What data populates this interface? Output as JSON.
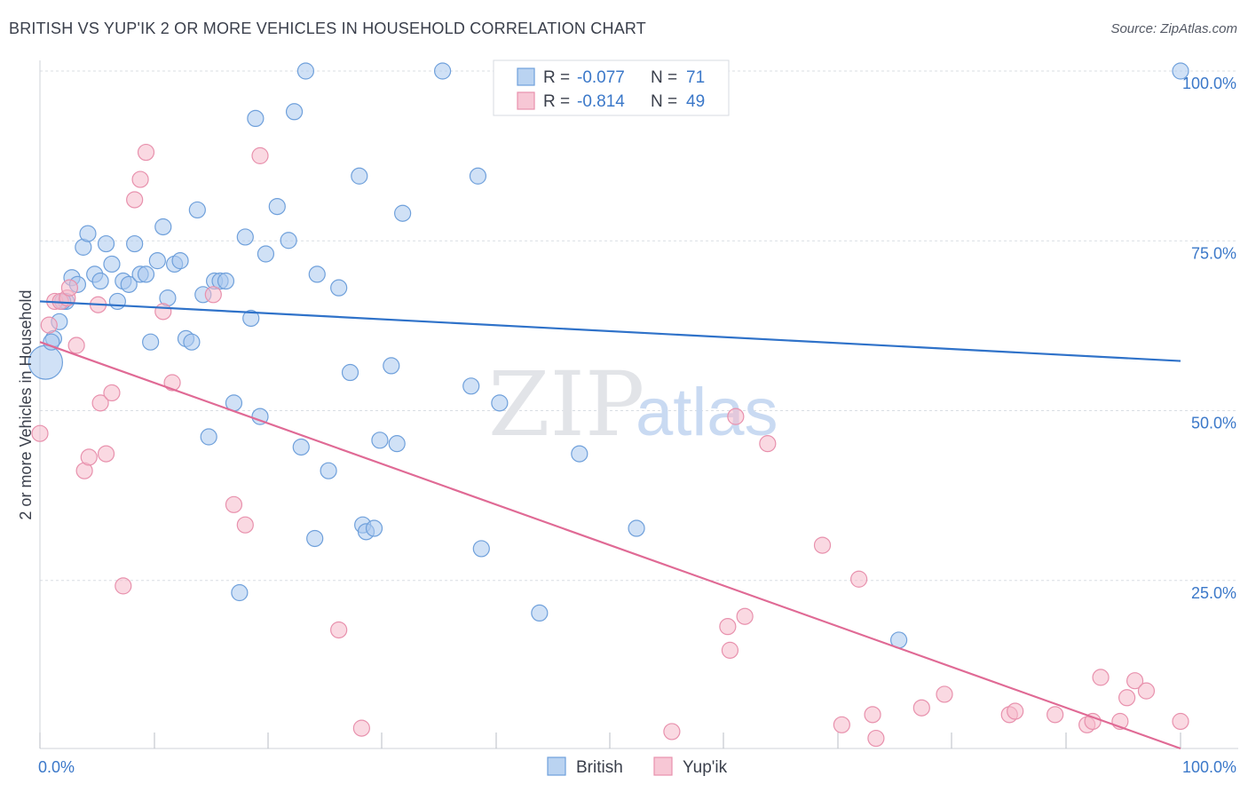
{
  "title": "BRITISH VS YUP'IK 2 OR MORE VEHICLES IN HOUSEHOLD CORRELATION CHART",
  "source": "Source: ZipAtlas.com",
  "watermark": {
    "zip": "ZIP",
    "atlas": "atlas"
  },
  "legend_box": {
    "rows": [
      {
        "r_label": "R =",
        "r_value": "-0.077",
        "n_label": "N =",
        "n_value": "71"
      },
      {
        "r_label": "R =",
        "r_value": "-0.814",
        "n_label": "N =",
        "n_value": "49"
      }
    ]
  },
  "bottom_legend": [
    "British",
    "Yup'ik"
  ],
  "colors": {
    "british_fill": "#a9c8ee",
    "british_stroke": "#6fa0db",
    "british_line": "#2f72c9",
    "yupik_fill": "#f5b9cb",
    "yupik_stroke": "#e891ad",
    "yupik_line": "#e06a95",
    "tick_text": "#3b78c9",
    "grid": "#d9dde3",
    "axis_text": "#3a3f4b"
  },
  "chart_data": {
    "type": "scatter",
    "title": "BRITISH VS YUP'IK 2 OR MORE VEHICLES IN HOUSEHOLD CORRELATION CHART",
    "xlabel": "",
    "ylabel": "2 or more Vehicles in Household",
    "xlim": [
      0,
      100
    ],
    "ylim": [
      0,
      100
    ],
    "x_tick_labels": [
      "0.0%",
      "100.0%"
    ],
    "y_tick_labels": [
      "25.0%",
      "50.0%",
      "75.0%",
      "100.0%"
    ],
    "y_ticks": [
      25,
      50,
      75,
      100
    ],
    "grid": true,
    "legend_position": "top-center",
    "series": [
      {
        "name": "British",
        "r": -0.077,
        "n": 71,
        "trend": [
          [
            0,
            66.0
          ],
          [
            100,
            57.2
          ]
        ],
        "points": [
          {
            "x": 0.5,
            "y": 57.0,
            "big": true
          },
          {
            "x": 1.2,
            "y": 60.5
          },
          {
            "x": 1.7,
            "y": 63.0
          },
          {
            "x": 2.3,
            "y": 66.0
          },
          {
            "x": 2.8,
            "y": 69.5
          },
          {
            "x": 3.3,
            "y": 68.5
          },
          {
            "x": 3.8,
            "y": 74.0
          },
          {
            "x": 4.2,
            "y": 76.0
          },
          {
            "x": 4.8,
            "y": 70.0
          },
          {
            "x": 5.3,
            "y": 69.0
          },
          {
            "x": 5.8,
            "y": 74.5
          },
          {
            "x": 6.3,
            "y": 71.5
          },
          {
            "x": 6.8,
            "y": 66.0
          },
          {
            "x": 7.3,
            "y": 69.0
          },
          {
            "x": 7.8,
            "y": 68.5
          },
          {
            "x": 8.3,
            "y": 74.5
          },
          {
            "x": 8.8,
            "y": 70.0
          },
          {
            "x": 9.3,
            "y": 70.0
          },
          {
            "x": 9.7,
            "y": 60.0
          },
          {
            "x": 10.3,
            "y": 72.0
          },
          {
            "x": 10.8,
            "y": 77.0
          },
          {
            "x": 11.2,
            "y": 66.5
          },
          {
            "x": 11.8,
            "y": 71.5
          },
          {
            "x": 12.3,
            "y": 72.0
          },
          {
            "x": 12.8,
            "y": 60.5
          },
          {
            "x": 13.3,
            "y": 60.0
          },
          {
            "x": 13.8,
            "y": 79.5
          },
          {
            "x": 14.3,
            "y": 67.0
          },
          {
            "x": 14.8,
            "y": 46.0
          },
          {
            "x": 15.3,
            "y": 69.0
          },
          {
            "x": 15.8,
            "y": 69.0
          },
          {
            "x": 16.3,
            "y": 69.0
          },
          {
            "x": 17.0,
            "y": 51.0
          },
          {
            "x": 17.5,
            "y": 23.0
          },
          {
            "x": 18.0,
            "y": 75.5
          },
          {
            "x": 18.5,
            "y": 63.5
          },
          {
            "x": 18.9,
            "y": 93.0
          },
          {
            "x": 19.3,
            "y": 49.0
          },
          {
            "x": 19.8,
            "y": 73.0
          },
          {
            "x": 20.8,
            "y": 80.0
          },
          {
            "x": 21.8,
            "y": 75.0
          },
          {
            "x": 22.3,
            "y": 94.0
          },
          {
            "x": 22.9,
            "y": 44.5
          },
          {
            "x": 23.3,
            "y": 100.0
          },
          {
            "x": 24.1,
            "y": 31.0
          },
          {
            "x": 24.3,
            "y": 70.0
          },
          {
            "x": 25.3,
            "y": 41.0
          },
          {
            "x": 26.2,
            "y": 68.0
          },
          {
            "x": 27.2,
            "y": 55.5
          },
          {
            "x": 28.0,
            "y": 84.5
          },
          {
            "x": 28.3,
            "y": 33.0
          },
          {
            "x": 28.6,
            "y": 32.0
          },
          {
            "x": 29.3,
            "y": 32.5
          },
          {
            "x": 29.8,
            "y": 45.5
          },
          {
            "x": 30.8,
            "y": 56.5
          },
          {
            "x": 31.3,
            "y": 45.0
          },
          {
            "x": 31.8,
            "y": 79.0
          },
          {
            "x": 35.3,
            "y": 100.0
          },
          {
            "x": 37.8,
            "y": 53.5
          },
          {
            "x": 38.4,
            "y": 84.5
          },
          {
            "x": 38.7,
            "y": 29.5
          },
          {
            "x": 40.3,
            "y": 51.0
          },
          {
            "x": 43.8,
            "y": 20.0
          },
          {
            "x": 47.3,
            "y": 43.5
          },
          {
            "x": 48.5,
            "y": 100.0
          },
          {
            "x": 50.5,
            "y": 100.0
          },
          {
            "x": 52.3,
            "y": 32.5
          },
          {
            "x": 75.3,
            "y": 16.0
          },
          {
            "x": 100.0,
            "y": 100.0
          },
          {
            "x": 1.0,
            "y": 60.0
          },
          {
            "x": 2.0,
            "y": 66.0
          }
        ]
      },
      {
        "name": "Yup'ik",
        "r": -0.814,
        "n": 49,
        "trend": [
          [
            0,
            60.0
          ],
          [
            100,
            0.0
          ]
        ],
        "points": [
          {
            "x": 0.0,
            "y": 46.5
          },
          {
            "x": 0.8,
            "y": 62.5
          },
          {
            "x": 1.3,
            "y": 66.0
          },
          {
            "x": 1.8,
            "y": 66.0
          },
          {
            "x": 2.4,
            "y": 66.5
          },
          {
            "x": 2.6,
            "y": 68.0
          },
          {
            "x": 3.2,
            "y": 59.5
          },
          {
            "x": 3.9,
            "y": 41.0
          },
          {
            "x": 4.3,
            "y": 43.0
          },
          {
            "x": 5.1,
            "y": 65.5
          },
          {
            "x": 5.3,
            "y": 51.0
          },
          {
            "x": 5.8,
            "y": 43.5
          },
          {
            "x": 6.3,
            "y": 52.5
          },
          {
            "x": 7.3,
            "y": 24.0
          },
          {
            "x": 8.3,
            "y": 81.0
          },
          {
            "x": 8.8,
            "y": 84.0
          },
          {
            "x": 9.3,
            "y": 88.0
          },
          {
            "x": 10.8,
            "y": 64.5
          },
          {
            "x": 11.6,
            "y": 54.0
          },
          {
            "x": 15.2,
            "y": 67.0
          },
          {
            "x": 17.0,
            "y": 36.0
          },
          {
            "x": 18.0,
            "y": 33.0
          },
          {
            "x": 19.3,
            "y": 87.5
          },
          {
            "x": 26.2,
            "y": 17.5
          },
          {
            "x": 28.2,
            "y": 3.0
          },
          {
            "x": 55.4,
            "y": 2.5
          },
          {
            "x": 60.3,
            "y": 18.0
          },
          {
            "x": 60.5,
            "y": 14.5
          },
          {
            "x": 61.0,
            "y": 49.0
          },
          {
            "x": 61.8,
            "y": 19.5
          },
          {
            "x": 63.8,
            "y": 45.0
          },
          {
            "x": 68.6,
            "y": 30.0
          },
          {
            "x": 70.3,
            "y": 3.5
          },
          {
            "x": 71.8,
            "y": 25.0
          },
          {
            "x": 73.0,
            "y": 5.0
          },
          {
            "x": 73.3,
            "y": 1.5
          },
          {
            "x": 77.3,
            "y": 6.0
          },
          {
            "x": 79.3,
            "y": 8.0
          },
          {
            "x": 85.0,
            "y": 5.0
          },
          {
            "x": 85.5,
            "y": 5.5
          },
          {
            "x": 89.0,
            "y": 5.0
          },
          {
            "x": 91.8,
            "y": 3.5
          },
          {
            "x": 92.3,
            "y": 4.0
          },
          {
            "x": 93.0,
            "y": 10.5
          },
          {
            "x": 94.7,
            "y": 4.0
          },
          {
            "x": 95.3,
            "y": 7.5
          },
          {
            "x": 96.0,
            "y": 10.0
          },
          {
            "x": 97.0,
            "y": 8.5
          },
          {
            "x": 100.0,
            "y": 4.0
          }
        ]
      }
    ]
  }
}
